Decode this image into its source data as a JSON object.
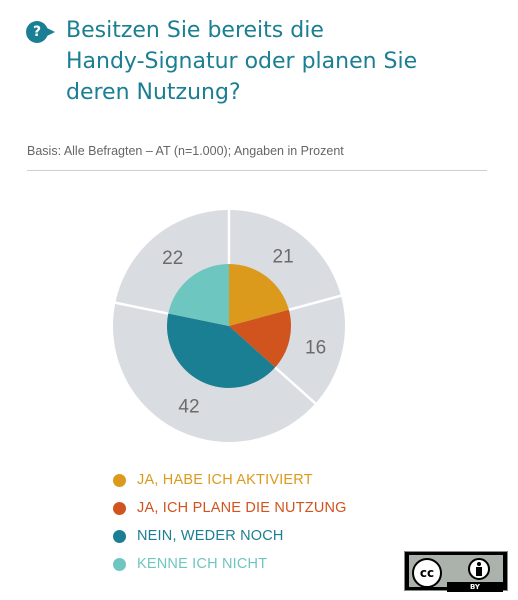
{
  "header": {
    "badge": "?",
    "title_lines": [
      "Besitzen Sie bereits die",
      "Handy-Signatur oder planen Sie",
      "deren Nutzung?"
    ]
  },
  "basis": "Basis: Alle Befragten – AT (n=1.000); Angaben in Prozent",
  "chart_data": {
    "type": "pie",
    "variant": "donut-with-inner-pie",
    "categories": [
      "JA, HABE ICH AKTIVIERT",
      "JA, ICH PLANE DIE NUTZUNG",
      "NEIN, WEDER NOCH",
      "KENNE ICH NICHT"
    ],
    "values": [
      21,
      16,
      42,
      22
    ],
    "value_labels": [
      "21",
      "16",
      "42",
      "22"
    ],
    "colors": [
      "#dc9a1d",
      "#d1531e",
      "#1b7f93",
      "#6ec6c1"
    ],
    "ring_color": "#d9dce0",
    "legend_position": "bottom"
  },
  "legend": {
    "items": [
      {
        "label": "JA, HABE ICH AKTIVIERT",
        "color": "#dc9a1d"
      },
      {
        "label": "JA, ICH PLANE DIE NUTZUNG",
        "color": "#d1531e"
      },
      {
        "label": "NEIN, WEDER NOCH",
        "color": "#1b7f93"
      },
      {
        "label": "KENNE ICH NICHT",
        "color": "#6ec6c1"
      }
    ]
  },
  "license": {
    "cc_text": "cc",
    "by_text": "BY",
    "icon": "creative-commons-by-icon"
  }
}
